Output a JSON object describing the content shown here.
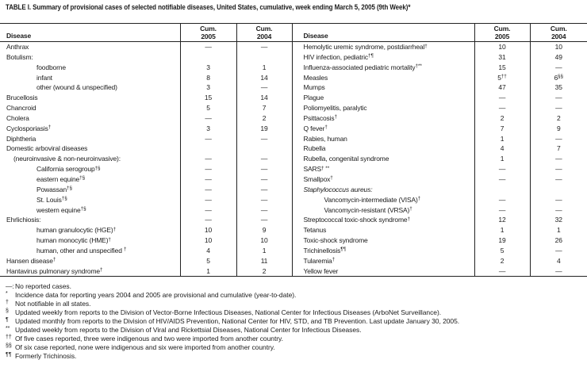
{
  "title": "TABLE I. Summary of provisional cases of selected notifiable diseases, United States, cumulative, week ending March 5, 2005 (9th Week)*",
  "header": {
    "disease": "Disease",
    "cum": "Cum.",
    "y2005": "2005",
    "y2004": "2004"
  },
  "dash": "—",
  "colors": {
    "text": "#1b1b1b",
    "line": "#222222",
    "background": "#ffffff"
  },
  "left_rows": [
    {
      "label": "Anthrax",
      "sup": "",
      "indent": 0,
      "italic": false,
      "v05": "—",
      "v05s": "",
      "v04": "—",
      "v04s": ""
    },
    {
      "label": "Botulism:",
      "sup": "",
      "indent": 0,
      "italic": false,
      "v05": "",
      "v05s": "",
      "v04": "",
      "v04s": ""
    },
    {
      "label": "foodborne",
      "sup": "",
      "indent": 2,
      "italic": false,
      "v05": "3",
      "v05s": "",
      "v04": "1",
      "v04s": ""
    },
    {
      "label": "infant",
      "sup": "",
      "indent": 2,
      "italic": false,
      "v05": "8",
      "v05s": "",
      "v04": "14",
      "v04s": ""
    },
    {
      "label": "other (wound & unspecified)",
      "sup": "",
      "indent": 2,
      "italic": false,
      "v05": "3",
      "v05s": "",
      "v04": "—",
      "v04s": ""
    },
    {
      "label": "Brucellosis",
      "sup": "",
      "indent": 0,
      "italic": false,
      "v05": "15",
      "v05s": "",
      "v04": "14",
      "v04s": ""
    },
    {
      "label": "Chancroid",
      "sup": "",
      "indent": 0,
      "italic": false,
      "v05": "5",
      "v05s": "",
      "v04": "7",
      "v04s": ""
    },
    {
      "label": "Cholera",
      "sup": "",
      "indent": 0,
      "italic": false,
      "v05": "—",
      "v05s": "",
      "v04": "2",
      "v04s": ""
    },
    {
      "label": "Cyclosporiasis",
      "sup": "†",
      "indent": 0,
      "italic": false,
      "v05": "3",
      "v05s": "",
      "v04": "19",
      "v04s": ""
    },
    {
      "label": "Diphtheria",
      "sup": "",
      "indent": 0,
      "italic": false,
      "v05": "—",
      "v05s": "",
      "v04": "—",
      "v04s": ""
    },
    {
      "label": "Domestic arboviral diseases",
      "sup": "",
      "indent": 0,
      "italic": false,
      "v05": "",
      "v05s": "",
      "v04": "",
      "v04s": ""
    },
    {
      "label": "(neuroinvasive & non-neuroinvasive):",
      "sup": "",
      "indent": 1,
      "italic": false,
      "v05": "—",
      "v05s": "",
      "v04": "—",
      "v04s": ""
    },
    {
      "label": "California serogroup",
      "sup": "†§",
      "indent": 2,
      "italic": false,
      "v05": "—",
      "v05s": "",
      "v04": "—",
      "v04s": ""
    },
    {
      "label": "eastern equine",
      "sup": "†§",
      "indent": 2,
      "italic": false,
      "v05": "—",
      "v05s": "",
      "v04": "—",
      "v04s": ""
    },
    {
      "label": "Powassan",
      "sup": "†§",
      "indent": 2,
      "italic": false,
      "v05": "—",
      "v05s": "",
      "v04": "—",
      "v04s": ""
    },
    {
      "label": "St. Louis",
      "sup": "†§",
      "indent": 2,
      "italic": false,
      "v05": "—",
      "v05s": "",
      "v04": "—",
      "v04s": ""
    },
    {
      "label": "western equine",
      "sup": "†§",
      "indent": 2,
      "italic": false,
      "v05": "—",
      "v05s": "",
      "v04": "—",
      "v04s": ""
    },
    {
      "label": "Ehrlichiosis:",
      "sup": "",
      "indent": 0,
      "italic": false,
      "v05": "—",
      "v05s": "",
      "v04": "—",
      "v04s": ""
    },
    {
      "label": "human granulocytic (HGE)",
      "sup": "†",
      "indent": 2,
      "italic": false,
      "v05": "10",
      "v05s": "",
      "v04": "9",
      "v04s": ""
    },
    {
      "label": "human monocytic (HME)",
      "sup": "†",
      "indent": 2,
      "italic": false,
      "v05": "10",
      "v05s": "",
      "v04": "10",
      "v04s": ""
    },
    {
      "label": "human, other and unspecified ",
      "sup": "†",
      "indent": 2,
      "italic": false,
      "v05": "4",
      "v05s": "",
      "v04": "1",
      "v04s": ""
    },
    {
      "label": "Hansen disease",
      "sup": "†",
      "indent": 0,
      "italic": false,
      "v05": "5",
      "v05s": "",
      "v04": "11",
      "v04s": ""
    },
    {
      "label": "Hantavirus pulmonary syndrome",
      "sup": "†",
      "indent": 0,
      "italic": false,
      "v05": "1",
      "v05s": "",
      "v04": "2",
      "v04s": ""
    }
  ],
  "right_rows": [
    {
      "label": "Hemolytic uremic syndrome, postdiarrheal",
      "sup": "†",
      "indent": 0,
      "italic": false,
      "v05": "10",
      "v05s": "",
      "v04": "10",
      "v04s": ""
    },
    {
      "label": "HIV infection, pediatric",
      "sup": "†¶",
      "indent": 0,
      "italic": false,
      "v05": "31",
      "v05s": "",
      "v04": "49",
      "v04s": ""
    },
    {
      "label": "Influenza-associated pediatric mortality",
      "sup": "†**",
      "indent": 0,
      "italic": false,
      "v05": "15",
      "v05s": "",
      "v04": "—",
      "v04s": ""
    },
    {
      "label": "Measles",
      "sup": "",
      "indent": 0,
      "italic": false,
      "v05": "5",
      "v05s": "††",
      "v04": "6",
      "v04s": "§§"
    },
    {
      "label": "Mumps",
      "sup": "",
      "indent": 0,
      "italic": false,
      "v05": "47",
      "v05s": "",
      "v04": "35",
      "v04s": ""
    },
    {
      "label": "Plague",
      "sup": "",
      "indent": 0,
      "italic": false,
      "v05": "—",
      "v05s": "",
      "v04": "—",
      "v04s": ""
    },
    {
      "label": "Poliomyelitis, paralytic",
      "sup": "",
      "indent": 0,
      "italic": false,
      "v05": "—",
      "v05s": "",
      "v04": "—",
      "v04s": ""
    },
    {
      "label": "Psittacosis",
      "sup": "†",
      "indent": 0,
      "italic": false,
      "v05": "2",
      "v05s": "",
      "v04": "2",
      "v04s": ""
    },
    {
      "label": "Q fever",
      "sup": "†",
      "indent": 0,
      "italic": false,
      "v05": "7",
      "v05s": "",
      "v04": "9",
      "v04s": ""
    },
    {
      "label": "Rabies, human",
      "sup": "",
      "indent": 0,
      "italic": false,
      "v05": "1",
      "v05s": "",
      "v04": "—",
      "v04s": ""
    },
    {
      "label": "Rubella",
      "sup": "",
      "indent": 0,
      "italic": false,
      "v05": "4",
      "v05s": "",
      "v04": "7",
      "v04s": ""
    },
    {
      "label": "Rubella, congenital syndrome",
      "sup": "",
      "indent": 0,
      "italic": false,
      "v05": "1",
      "v05s": "",
      "v04": "—",
      "v04s": ""
    },
    {
      "label": "SARS",
      "sup": "† **",
      "indent": 0,
      "italic": false,
      "v05": "—",
      "v05s": "",
      "v04": "—",
      "v04s": ""
    },
    {
      "label": "Smallpox",
      "sup": "†",
      "indent": 0,
      "italic": false,
      "v05": "—",
      "v05s": "",
      "v04": "—",
      "v04s": ""
    },
    {
      "label": "Staphylococcus aureus:",
      "sup": "",
      "indent": 0,
      "italic": true,
      "v05": "",
      "v05s": "",
      "v04": "",
      "v04s": ""
    },
    {
      "label": "Vancomycin-intermediate (VISA)",
      "sup": "†",
      "indent": 2,
      "italic": false,
      "v05": "—",
      "v05s": "",
      "v04": "—",
      "v04s": ""
    },
    {
      "label": "Vancomycin-resistant (VRSA)",
      "sup": "†",
      "indent": 2,
      "italic": false,
      "v05": "—",
      "v05s": "",
      "v04": "—",
      "v04s": ""
    },
    {
      "label": "Streptococcal toxic-shock syndrome",
      "sup": "†",
      "indent": 0,
      "italic": false,
      "v05": "12",
      "v05s": "",
      "v04": "32",
      "v04s": ""
    },
    {
      "label": "Tetanus",
      "sup": "",
      "indent": 0,
      "italic": false,
      "v05": "1",
      "v05s": "",
      "v04": "1",
      "v04s": ""
    },
    {
      "label": "Toxic-shock syndrome",
      "sup": "",
      "indent": 0,
      "italic": false,
      "v05": "19",
      "v05s": "",
      "v04": "26",
      "v04s": ""
    },
    {
      "label": "Trichinellosis",
      "sup": "¶¶",
      "indent": 0,
      "italic": false,
      "v05": "5",
      "v05s": "",
      "v04": "—",
      "v04s": ""
    },
    {
      "label": "Tularemia",
      "sup": "†",
      "indent": 0,
      "italic": false,
      "v05": "2",
      "v05s": "",
      "v04": "4",
      "v04s": ""
    },
    {
      "label": "Yellow fever",
      "sup": "",
      "indent": 0,
      "italic": false,
      "v05": "—",
      "v05s": "",
      "v04": "—",
      "v04s": ""
    }
  ],
  "footnotes": [
    {
      "marker": "—:",
      "raised": false,
      "text": "No reported cases."
    },
    {
      "marker": "*",
      "raised": true,
      "text": "Incidence data for reporting years 2004 and 2005 are provisional and cumulative (year-to-date)."
    },
    {
      "marker": "†",
      "raised": true,
      "text": "Not notifiable in all states."
    },
    {
      "marker": "§",
      "raised": true,
      "text": "Updated weekly from reports to the Division of Vector-Borne Infectious Diseases, National Center for Infectious Diseases (ArboNet Surveillance)."
    },
    {
      "marker": "¶",
      "raised": true,
      "text": "Updated monthly from reports to the Division of HIV/AIDS Prevention, National Center for HIV, STD, and TB Prevention. Last update January 30, 2005."
    },
    {
      "marker": "**",
      "raised": true,
      "text": "Updated weekly from reports to the Division of Viral and Rickettsial Diseases, National Center for Infectious Diseases."
    },
    {
      "marker": "††",
      "raised": true,
      "text": "Of five cases reported, three were indigenous and two were imported from another country."
    },
    {
      "marker": "§§",
      "raised": true,
      "text": "Of six case reported, none were indigenous and six were imported from another country."
    },
    {
      "marker": "¶¶",
      "raised": true,
      "text": "Formerly Trichinosis."
    }
  ]
}
